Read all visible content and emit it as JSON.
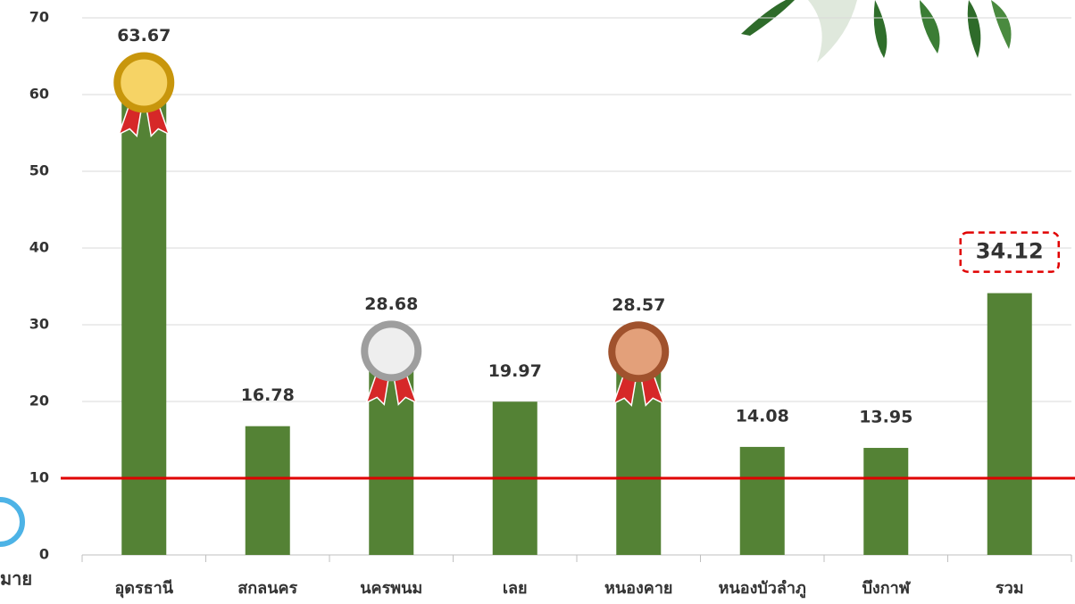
{
  "chart_data": {
    "type": "bar",
    "categories": [
      "อุดรธานี",
      "สกลนคร",
      "นครพนม",
      "เลย",
      "หนองคาย",
      "หนองบัวลำภู",
      "บึงกาฬ",
      "รวม"
    ],
    "values": [
      63.67,
      16.78,
      28.68,
      19.97,
      28.57,
      14.08,
      13.95,
      34.12
    ],
    "color": "#548235",
    "ylim": [
      0,
      70
    ],
    "yticks": [
      0,
      10,
      20,
      30,
      40,
      50,
      60,
      70
    ],
    "grid": true,
    "target": 10,
    "target_color": "#e00000",
    "target_label": "มาย"
  }
}
